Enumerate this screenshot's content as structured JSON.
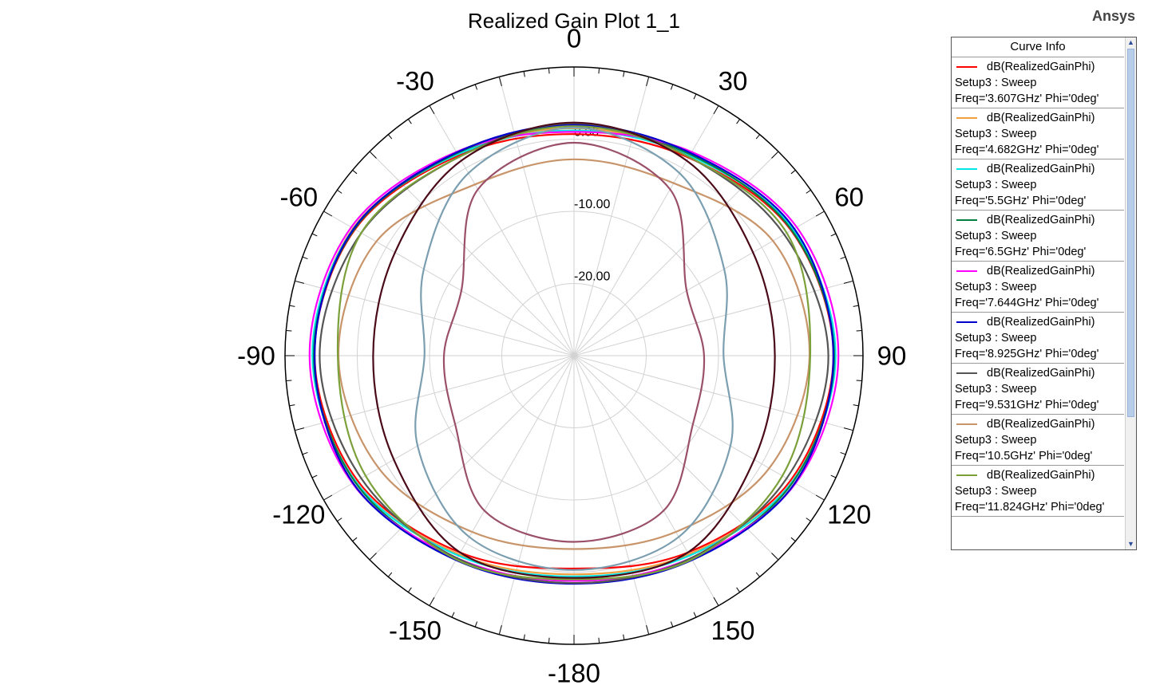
{
  "brand": "Ansys",
  "legend": {
    "title": "Curve Info",
    "items": [
      {
        "quantity": "dB(RealizedGainPhi)",
        "setup": "Setup3 : Sweep",
        "params": "Freq='3.607GHz' Phi='0deg'",
        "color": "#ff0000"
      },
      {
        "quantity": "dB(RealizedGainPhi)",
        "setup": "Setup3 : Sweep",
        "params": "Freq='4.682GHz' Phi='0deg'",
        "color": "#f0a040"
      },
      {
        "quantity": "dB(RealizedGainPhi)",
        "setup": "Setup3 : Sweep",
        "params": "Freq='5.5GHz' Phi='0deg'",
        "color": "#00e5e5"
      },
      {
        "quantity": "dB(RealizedGainPhi)",
        "setup": "Setup3 : Sweep",
        "params": "Freq='6.5GHz' Phi='0deg'",
        "color": "#008040"
      },
      {
        "quantity": "dB(RealizedGainPhi)",
        "setup": "Setup3 : Sweep",
        "params": "Freq='7.644GHz' Phi='0deg'",
        "color": "#ff00ff"
      },
      {
        "quantity": "dB(RealizedGainPhi)",
        "setup": "Setup3 : Sweep",
        "params": "Freq='8.925GHz' Phi='0deg'",
        "color": "#0000cc"
      },
      {
        "quantity": "dB(RealizedGainPhi)",
        "setup": "Setup3 : Sweep",
        "params": "Freq='9.531GHz' Phi='0deg'",
        "color": "#555555"
      },
      {
        "quantity": "dB(RealizedGainPhi)",
        "setup": "Setup3 : Sweep",
        "params": "Freq='10.5GHz' Phi='0deg'",
        "color": "#c8946a"
      },
      {
        "quantity": "dB(RealizedGainPhi)",
        "setup": "Setup3 : Sweep",
        "params": "Freq='11.824GHz' Phi='0deg'",
        "color": "#7ba03a"
      }
    ]
  },
  "chart_data": {
    "type": "polar",
    "title": "Realized Gain Plot 1_1",
    "angle_ticks": [
      "0",
      "30",
      "60",
      "90",
      "120",
      "150",
      "-180",
      "-150",
      "-120",
      "-90",
      "-60",
      "-30"
    ],
    "angle_tick_values": [
      0,
      30,
      60,
      90,
      120,
      150,
      180,
      -150,
      -120,
      -90,
      -60,
      -30
    ],
    "radial_ticks": [
      "0.00",
      "-10.00",
      "-20.00"
    ],
    "radial_tick_values": [
      0,
      -10,
      -20
    ],
    "rlim": [
      -30,
      10
    ],
    "grid": true,
    "legend_position": "right",
    "angles_deg": [
      0,
      30,
      60,
      90,
      120,
      150,
      180,
      -150,
      -120,
      -90,
      -60,
      -30
    ],
    "series": [
      {
        "name": "dB(RealizedGainPhi) Setup3 : Sweep Freq='3.607GHz' Phi='0deg'",
        "color": "#ff0000",
        "values": [
          0.7,
          1.7,
          4.7,
          5.9,
          4.6,
          1.5,
          -0.5,
          1.5,
          4.6,
          5.9,
          5.0,
          2.0
        ]
      },
      {
        "name": "dB(RealizedGainPhi) Setup3 : Sweep Freq='4.682GHz' Phi='0deg'",
        "color": "#f0a040",
        "values": [
          1.5,
          2.1,
          4.9,
          6.1,
          4.9,
          1.8,
          0.3,
          1.8,
          4.9,
          6.1,
          5.3,
          2.3
        ]
      },
      {
        "name": "dB(RealizedGainPhi) Setup3 : Sweep Freq='5.5GHz' Phi='0deg'",
        "color": "#00e5e5",
        "values": [
          1.2,
          2.0,
          5.0,
          6.2,
          4.9,
          2.0,
          0.6,
          2.0,
          4.9,
          6.2,
          5.2,
          2.2
        ]
      },
      {
        "name": "dB(RealizedGainPhi) Setup3 : Sweep Freq='6.5GHz' Phi='0deg'",
        "color": "#008040",
        "values": [
          1.8,
          2.2,
          4.8,
          6.0,
          5.0,
          2.6,
          1.2,
          2.6,
          5.0,
          6.0,
          5.1,
          2.4
        ]
      },
      {
        "name": "dB(RealizedGainPhi) Setup3 : Sweep Freq='7.644GHz' Phi='0deg'",
        "color": "#ff00ff",
        "values": [
          1.0,
          2.6,
          5.6,
          6.6,
          5.4,
          2.4,
          1.2,
          2.4,
          5.4,
          6.6,
          5.6,
          2.6
        ]
      },
      {
        "name": "dB(RealizedGainPhi) Setup3 : Sweep Freq='8.925GHz' Phi='0deg'",
        "color": "#0000cc",
        "values": [
          2.0,
          2.4,
          5.2,
          5.9,
          5.3,
          2.7,
          1.6,
          2.7,
          5.3,
          5.9,
          5.2,
          2.5
        ]
      },
      {
        "name": "dB(RealizedGainPhi) Setup3 : Sweep Freq='9.531GHz' Phi='0deg'",
        "color": "#555555",
        "values": [
          2.2,
          1.8,
          3.6,
          5.2,
          4.0,
          2.4,
          1.5,
          2.4,
          4.0,
          5.2,
          4.0,
          1.8
        ]
      },
      {
        "name": "dB(RealizedGainPhi) Setup3 : Sweep Freq='10.5GHz' Phi='0deg'",
        "color": "#c8946a",
        "values": [
          -2.8,
          -2.4,
          1.8,
          2.6,
          1.2,
          -1.8,
          -3.2,
          -1.8,
          1.2,
          2.6,
          1.6,
          -2.6
        ]
      },
      {
        "name": "dB(RealizedGainPhi) Setup3 : Sweep Freq='11.824GHz' Phi='0deg'",
        "color": "#7ba03a",
        "values": [
          1.8,
          1.8,
          4.0,
          2.7,
          3.3,
          2.6,
          1.0,
          2.6,
          3.3,
          2.7,
          4.0,
          1.8
        ]
      },
      {
        "color": "#4a0a18",
        "values": [
          2.3,
          1.2,
          -1.4,
          -2.2,
          -1.2,
          1.5,
          0.8,
          1.5,
          -1.2,
          -2.2,
          -1.4,
          1.2
        ]
      },
      {
        "color": "#7b9fb0",
        "values": [
          1.6,
          -0.8,
          -6.0,
          -9.3,
          -5.0,
          -1.0,
          -0.3,
          -1.0,
          -5.0,
          -9.3,
          -6.0,
          -0.8
        ]
      },
      {
        "color": "#9a5068",
        "values": [
          -0.5,
          -3.4,
          -12.0,
          -12.0,
          -11.0,
          -5.2,
          -4.2,
          -5.2,
          -11.0,
          -12.0,
          -12.0,
          -3.4
        ]
      }
    ]
  }
}
